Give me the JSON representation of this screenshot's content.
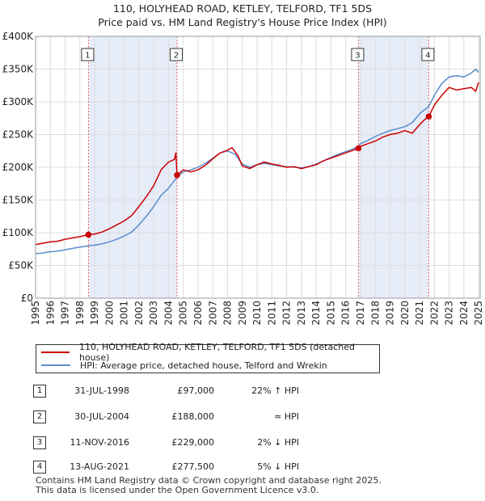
{
  "title": {
    "line1": "110, HOLYHEAD ROAD, KETLEY, TELFORD, TF1 5DS",
    "line2": "Price paid vs. HM Land Registry's House Price Index (HPI)"
  },
  "colors": {
    "property": "#cc0000",
    "hpi": "#5b8ccc",
    "shade": "#dde6f5",
    "marker_line": "#e06060"
  },
  "legend": {
    "property_label": "110, HOLYHEAD ROAD, KETLEY, TELFORD, TF1 5DS (detached house)",
    "hpi_label": "HPI: Average price, detached house, Telford and Wrekin"
  },
  "transactions": [
    {
      "num": "1",
      "date": "31-JUL-1998",
      "price": "£97,000",
      "hpi": "22% ↑ HPI"
    },
    {
      "num": "2",
      "date": "30-JUL-2004",
      "price": "£188,000",
      "hpi": "≈ HPI"
    },
    {
      "num": "3",
      "date": "11-NOV-2016",
      "price": "£229,000",
      "hpi": "2% ↓ HPI"
    },
    {
      "num": "4",
      "date": "13-AUG-2021",
      "price": "£277,500",
      "hpi": "5% ↓ HPI"
    }
  ],
  "footer": {
    "line1": "Contains HM Land Registry data © Crown copyright and database right 2025.",
    "line2": "This data is licensed under the Open Government Licence v3.0."
  },
  "chart_data": {
    "type": "line",
    "x_range": [
      1995,
      2025.1
    ],
    "ylim": [
      0,
      400000
    ],
    "y_ticks": [
      {
        "value": 0,
        "label": "£0"
      },
      {
        "value": 50000,
        "label": "£50K"
      },
      {
        "value": 100000,
        "label": "£100K"
      },
      {
        "value": 150000,
        "label": "£150K"
      },
      {
        "value": 200000,
        "label": "£200K"
      },
      {
        "value": 250000,
        "label": "£250K"
      },
      {
        "value": 300000,
        "label": "£300K"
      },
      {
        "value": 350000,
        "label": "£350K"
      },
      {
        "value": 400000,
        "label": "£400K"
      }
    ],
    "x_ticks": [
      "1995",
      "1996",
      "1997",
      "1998",
      "1999",
      "2000",
      "2001",
      "2002",
      "2003",
      "2004",
      "2005",
      "2006",
      "2007",
      "2008",
      "2009",
      "2010",
      "2011",
      "2012",
      "2013",
      "2014",
      "2015",
      "2016",
      "2017",
      "2018",
      "2019",
      "2020",
      "2021",
      "2022",
      "2023",
      "2024",
      "2025"
    ],
    "grid": true,
    "shaded_ranges": [
      [
        1998.58,
        2004.58
      ],
      [
        2016.86,
        2021.62
      ]
    ],
    "markers": [
      {
        "label": "1",
        "x": 1998.58,
        "y": 97000
      },
      {
        "label": "2",
        "x": 2004.58,
        "y": 188000
      },
      {
        "label": "3",
        "x": 2016.86,
        "y": 229000
      },
      {
        "label": "4",
        "x": 2021.62,
        "y": 277500
      }
    ],
    "series": [
      {
        "name": "110, HOLYHEAD ROAD, KETLEY, TELFORD, TF1 5DS (detached house)",
        "points": [
          [
            1995,
            82000
          ],
          [
            1995.5,
            84000
          ],
          [
            1996,
            86000
          ],
          [
            1996.5,
            87000
          ],
          [
            1997,
            90000
          ],
          [
            1997.5,
            92000
          ],
          [
            1998,
            94000
          ],
          [
            1998.58,
            97000
          ],
          [
            1999,
            98000
          ],
          [
            1999.5,
            101000
          ],
          [
            2000,
            106000
          ],
          [
            2000.5,
            112000
          ],
          [
            2001,
            118000
          ],
          [
            2001.5,
            126000
          ],
          [
            2002,
            140000
          ],
          [
            2002.5,
            155000
          ],
          [
            2003,
            172000
          ],
          [
            2003.5,
            196000
          ],
          [
            2004,
            208000
          ],
          [
            2004.4,
            212000
          ],
          [
            2004.5,
            222000
          ],
          [
            2004.58,
            188000
          ],
          [
            2005,
            196000
          ],
          [
            2005.5,
            193000
          ],
          [
            2006,
            196000
          ],
          [
            2006.5,
            203000
          ],
          [
            2007,
            213000
          ],
          [
            2007.5,
            222000
          ],
          [
            2008,
            226000
          ],
          [
            2008.3,
            230000
          ],
          [
            2008.7,
            218000
          ],
          [
            2009,
            202000
          ],
          [
            2009.5,
            198000
          ],
          [
            2010,
            204000
          ],
          [
            2010.5,
            208000
          ],
          [
            2011,
            205000
          ],
          [
            2011.5,
            203000
          ],
          [
            2012,
            200000
          ],
          [
            2012.5,
            201000
          ],
          [
            2013,
            198000
          ],
          [
            2013.5,
            201000
          ],
          [
            2014,
            204000
          ],
          [
            2014.5,
            210000
          ],
          [
            2015,
            214000
          ],
          [
            2015.5,
            218000
          ],
          [
            2016,
            222000
          ],
          [
            2016.5,
            226000
          ],
          [
            2016.86,
            229000
          ],
          [
            2017,
            232000
          ],
          [
            2017.5,
            236000
          ],
          [
            2018,
            240000
          ],
          [
            2018.5,
            246000
          ],
          [
            2019,
            250000
          ],
          [
            2019.5,
            252000
          ],
          [
            2020,
            256000
          ],
          [
            2020.5,
            252000
          ],
          [
            2021,
            265000
          ],
          [
            2021.3,
            272000
          ],
          [
            2021.62,
            277500
          ],
          [
            2022,
            295000
          ],
          [
            2022.5,
            310000
          ],
          [
            2023,
            322000
          ],
          [
            2023.5,
            318000
          ],
          [
            2024,
            320000
          ],
          [
            2024.5,
            322000
          ],
          [
            2024.8,
            316000
          ],
          [
            2025,
            330000
          ]
        ]
      },
      {
        "name": "HPI: Average price, detached house, Telford and Wrekin",
        "points": [
          [
            1995,
            68000
          ],
          [
            1995.5,
            69000
          ],
          [
            1996,
            71000
          ],
          [
            1996.5,
            72000
          ],
          [
            1997,
            74000
          ],
          [
            1997.5,
            76000
          ],
          [
            1998,
            78000
          ],
          [
            1998.58,
            80000
          ],
          [
            1999,
            81000
          ],
          [
            1999.5,
            83000
          ],
          [
            2000,
            86000
          ],
          [
            2000.5,
            90000
          ],
          [
            2001,
            95000
          ],
          [
            2001.5,
            101000
          ],
          [
            2002,
            112000
          ],
          [
            2002.5,
            125000
          ],
          [
            2003,
            140000
          ],
          [
            2003.5,
            157000
          ],
          [
            2004,
            168000
          ],
          [
            2004.58,
            185000
          ],
          [
            2005,
            193000
          ],
          [
            2005.5,
            196000
          ],
          [
            2006,
            200000
          ],
          [
            2006.5,
            206000
          ],
          [
            2007,
            214000
          ],
          [
            2007.5,
            222000
          ],
          [
            2008,
            225000
          ],
          [
            2008.5,
            220000
          ],
          [
            2009,
            205000
          ],
          [
            2009.5,
            200000
          ],
          [
            2010,
            204000
          ],
          [
            2010.5,
            206000
          ],
          [
            2011,
            204000
          ],
          [
            2011.5,
            202000
          ],
          [
            2012,
            201000
          ],
          [
            2012.5,
            200000
          ],
          [
            2013,
            199000
          ],
          [
            2013.5,
            201000
          ],
          [
            2014,
            205000
          ],
          [
            2014.5,
            210000
          ],
          [
            2015,
            215000
          ],
          [
            2015.5,
            220000
          ],
          [
            2016,
            224000
          ],
          [
            2016.5,
            228000
          ],
          [
            2016.86,
            232000
          ],
          [
            2017,
            236000
          ],
          [
            2017.5,
            241000
          ],
          [
            2018,
            247000
          ],
          [
            2018.5,
            252000
          ],
          [
            2019,
            256000
          ],
          [
            2019.5,
            259000
          ],
          [
            2020,
            262000
          ],
          [
            2020.5,
            268000
          ],
          [
            2021,
            282000
          ],
          [
            2021.62,
            293000
          ],
          [
            2022,
            310000
          ],
          [
            2022.5,
            328000
          ],
          [
            2023,
            338000
          ],
          [
            2023.5,
            340000
          ],
          [
            2024,
            338000
          ],
          [
            2024.5,
            344000
          ],
          [
            2024.8,
            350000
          ],
          [
            2025,
            345000
          ]
        ]
      }
    ]
  }
}
